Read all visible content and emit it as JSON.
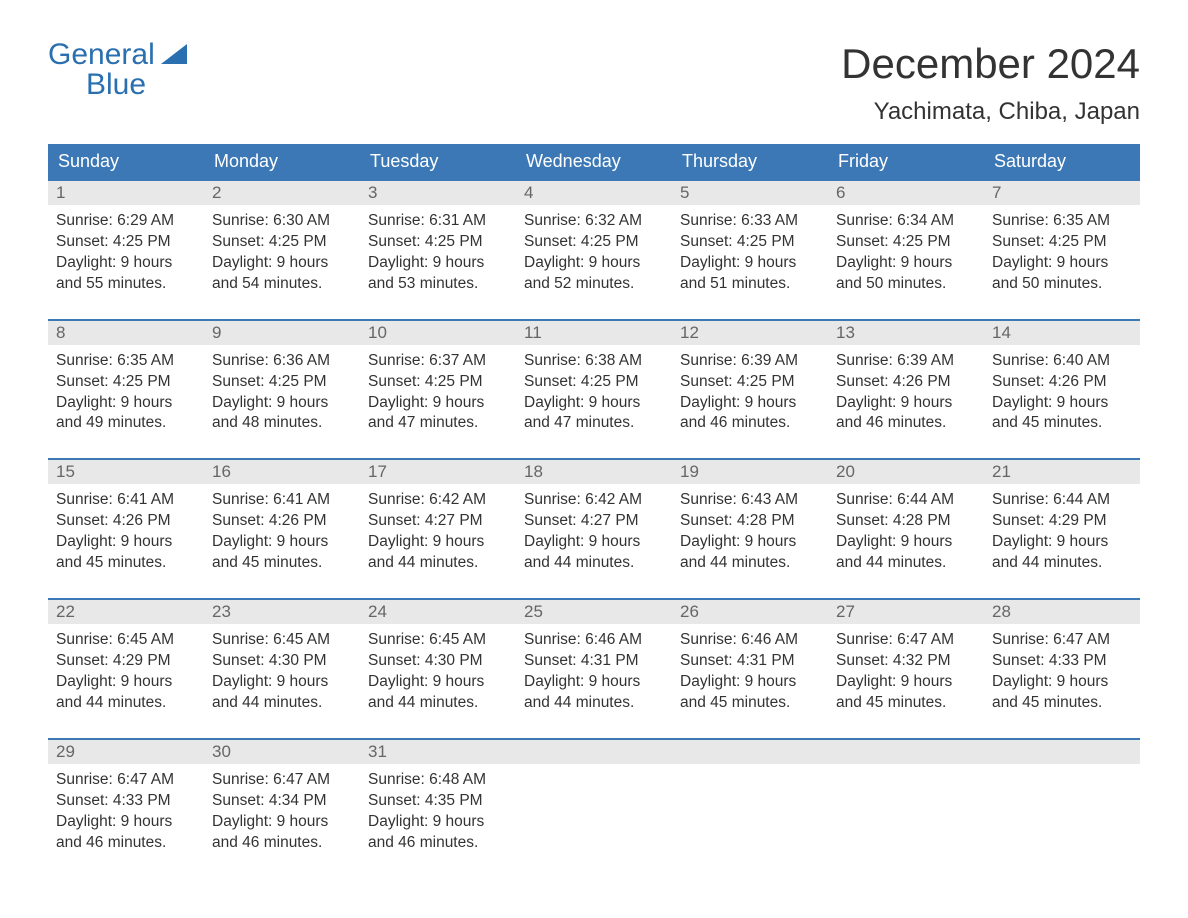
{
  "brand": {
    "line1": "General",
    "line2": "Blue"
  },
  "title": "December 2024",
  "location": "Yachimata, Chiba, Japan",
  "colors": {
    "header_bg": "#3b78b5",
    "header_text": "#ffffff",
    "row_border": "#3b78b5",
    "daynum_bg": "#e8e8e8",
    "daynum_text": "#666666",
    "body_text": "#333333",
    "brand_color": "#2a6fb0",
    "page_bg": "#ffffff"
  },
  "typography": {
    "month_title_pt": 42,
    "location_pt": 24,
    "dow_pt": 18,
    "daynum_pt": 17,
    "cell_pt": 15.5,
    "logo_pt": 30
  },
  "dow": [
    "Sunday",
    "Monday",
    "Tuesday",
    "Wednesday",
    "Thursday",
    "Friday",
    "Saturday"
  ],
  "weeks": [
    [
      {
        "n": "1",
        "sr": "6:29 AM",
        "ss": "4:25 PM",
        "dl": "9 hours",
        "dm": "and 55 minutes."
      },
      {
        "n": "2",
        "sr": "6:30 AM",
        "ss": "4:25 PM",
        "dl": "9 hours",
        "dm": "and 54 minutes."
      },
      {
        "n": "3",
        "sr": "6:31 AM",
        "ss": "4:25 PM",
        "dl": "9 hours",
        "dm": "and 53 minutes."
      },
      {
        "n": "4",
        "sr": "6:32 AM",
        "ss": "4:25 PM",
        "dl": "9 hours",
        "dm": "and 52 minutes."
      },
      {
        "n": "5",
        "sr": "6:33 AM",
        "ss": "4:25 PM",
        "dl": "9 hours",
        "dm": "and 51 minutes."
      },
      {
        "n": "6",
        "sr": "6:34 AM",
        "ss": "4:25 PM",
        "dl": "9 hours",
        "dm": "and 50 minutes."
      },
      {
        "n": "7",
        "sr": "6:35 AM",
        "ss": "4:25 PM",
        "dl": "9 hours",
        "dm": "and 50 minutes."
      }
    ],
    [
      {
        "n": "8",
        "sr": "6:35 AM",
        "ss": "4:25 PM",
        "dl": "9 hours",
        "dm": "and 49 minutes."
      },
      {
        "n": "9",
        "sr": "6:36 AM",
        "ss": "4:25 PM",
        "dl": "9 hours",
        "dm": "and 48 minutes."
      },
      {
        "n": "10",
        "sr": "6:37 AM",
        "ss": "4:25 PM",
        "dl": "9 hours",
        "dm": "and 47 minutes."
      },
      {
        "n": "11",
        "sr": "6:38 AM",
        "ss": "4:25 PM",
        "dl": "9 hours",
        "dm": "and 47 minutes."
      },
      {
        "n": "12",
        "sr": "6:39 AM",
        "ss": "4:25 PM",
        "dl": "9 hours",
        "dm": "and 46 minutes."
      },
      {
        "n": "13",
        "sr": "6:39 AM",
        "ss": "4:26 PM",
        "dl": "9 hours",
        "dm": "and 46 minutes."
      },
      {
        "n": "14",
        "sr": "6:40 AM",
        "ss": "4:26 PM",
        "dl": "9 hours",
        "dm": "and 45 minutes."
      }
    ],
    [
      {
        "n": "15",
        "sr": "6:41 AM",
        "ss": "4:26 PM",
        "dl": "9 hours",
        "dm": "and 45 minutes."
      },
      {
        "n": "16",
        "sr": "6:41 AM",
        "ss": "4:26 PM",
        "dl": "9 hours",
        "dm": "and 45 minutes."
      },
      {
        "n": "17",
        "sr": "6:42 AM",
        "ss": "4:27 PM",
        "dl": "9 hours",
        "dm": "and 44 minutes."
      },
      {
        "n": "18",
        "sr": "6:42 AM",
        "ss": "4:27 PM",
        "dl": "9 hours",
        "dm": "and 44 minutes."
      },
      {
        "n": "19",
        "sr": "6:43 AM",
        "ss": "4:28 PM",
        "dl": "9 hours",
        "dm": "and 44 minutes."
      },
      {
        "n": "20",
        "sr": "6:44 AM",
        "ss": "4:28 PM",
        "dl": "9 hours",
        "dm": "and 44 minutes."
      },
      {
        "n": "21",
        "sr": "6:44 AM",
        "ss": "4:29 PM",
        "dl": "9 hours",
        "dm": "and 44 minutes."
      }
    ],
    [
      {
        "n": "22",
        "sr": "6:45 AM",
        "ss": "4:29 PM",
        "dl": "9 hours",
        "dm": "and 44 minutes."
      },
      {
        "n": "23",
        "sr": "6:45 AM",
        "ss": "4:30 PM",
        "dl": "9 hours",
        "dm": "and 44 minutes."
      },
      {
        "n": "24",
        "sr": "6:45 AM",
        "ss": "4:30 PM",
        "dl": "9 hours",
        "dm": "and 44 minutes."
      },
      {
        "n": "25",
        "sr": "6:46 AM",
        "ss": "4:31 PM",
        "dl": "9 hours",
        "dm": "and 44 minutes."
      },
      {
        "n": "26",
        "sr": "6:46 AM",
        "ss": "4:31 PM",
        "dl": "9 hours",
        "dm": "and 45 minutes."
      },
      {
        "n": "27",
        "sr": "6:47 AM",
        "ss": "4:32 PM",
        "dl": "9 hours",
        "dm": "and 45 minutes."
      },
      {
        "n": "28",
        "sr": "6:47 AM",
        "ss": "4:33 PM",
        "dl": "9 hours",
        "dm": "and 45 minutes."
      }
    ],
    [
      {
        "n": "29",
        "sr": "6:47 AM",
        "ss": "4:33 PM",
        "dl": "9 hours",
        "dm": "and 46 minutes."
      },
      {
        "n": "30",
        "sr": "6:47 AM",
        "ss": "4:34 PM",
        "dl": "9 hours",
        "dm": "and 46 minutes."
      },
      {
        "n": "31",
        "sr": "6:48 AM",
        "ss": "4:35 PM",
        "dl": "9 hours",
        "dm": "and 46 minutes."
      },
      null,
      null,
      null,
      null
    ]
  ],
  "labels": {
    "sunrise_prefix": "Sunrise: ",
    "sunset_prefix": "Sunset: ",
    "daylight_prefix": "Daylight: "
  }
}
